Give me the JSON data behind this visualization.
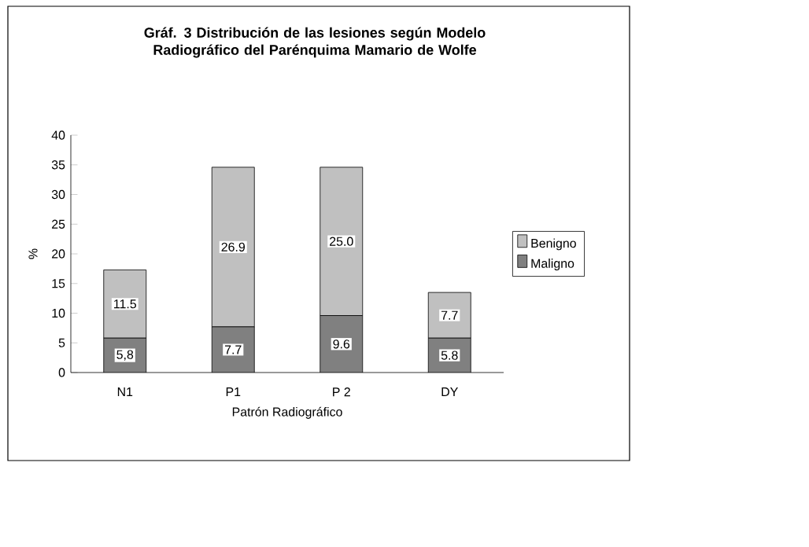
{
  "chart_data": {
    "type": "bar",
    "title": "Gráf. 3    Distribución de las lesiones según Modelo Radiográfico del Parénquima Mamario de Wolfe",
    "xlabel": "Patrón Radiográfico",
    "ylabel": "%",
    "categories": [
      "N1",
      "P1",
      "P 2",
      "DY"
    ],
    "stacked": true,
    "ylim": [
      0,
      40
    ],
    "yticks": [
      0,
      5,
      10,
      15,
      20,
      25,
      30,
      35,
      40
    ],
    "grid": false,
    "legend": "right",
    "series": [
      {
        "name": "Maligno",
        "color": "#808080",
        "values": [
          5.8,
          7.7,
          9.6,
          5.8
        ],
        "value_labels": [
          "5,8",
          "7.7",
          "9.6",
          "5.8"
        ]
      },
      {
        "name": "Benigno",
        "color": "#c0c0c0",
        "values": [
          11.5,
          26.9,
          25.0,
          7.7
        ],
        "value_labels": [
          "11.5",
          "26.9",
          "25.0",
          "7.7"
        ]
      }
    ]
  }
}
